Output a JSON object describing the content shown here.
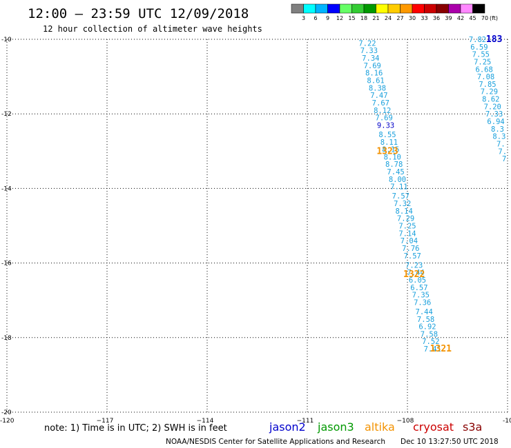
{
  "header": {
    "title": "12:00 – 23:59 UTC 12/09/2018",
    "subtitle": "12 hour collection of altimeter wave heights"
  },
  "colorbar": {
    "labels": [
      "3",
      "6",
      "9",
      "12",
      "15",
      "18",
      "21",
      "24",
      "27",
      "30",
      "33",
      "36",
      "39",
      "42",
      "45",
      "70"
    ],
    "unit": "(ft)",
    "colors": [
      "#808080",
      "#00ffff",
      "#00b4ff",
      "#0000ff",
      "#66ff66",
      "#33cc33",
      "#009900",
      "#ffff00",
      "#ffcc00",
      "#ff9900",
      "#ff0000",
      "#cc0000",
      "#880000",
      "#aa00aa",
      "#ff88ff",
      "#000000"
    ]
  },
  "chart_data": {
    "type": "scatter",
    "title": "12:00 – 23:59 UTC 12/09/2018",
    "subtitle": "12 hour collection of altimeter wave heights",
    "xlim": [
      -120,
      -105
    ],
    "ylim": [
      -20,
      -10
    ],
    "xticks": [
      -117,
      -114,
      -111,
      -108
    ],
    "xtick_labels": [
      "−117",
      "−114",
      "−111",
      "−108"
    ],
    "yticks": [
      -12,
      -14,
      -16,
      -18
    ],
    "ytick_labels": [
      "-12",
      "-14",
      "-16",
      "-18"
    ],
    "corner_labels": {
      "top_left": "-10",
      "bottom_left": "-20",
      "bottom_left_x": "-120",
      "bottom_right_x": "-10"
    },
    "grid": true,
    "tracks": [
      {
        "name": "altika",
        "pass": "1323",
        "pass_lon": -108.6,
        "pass_lat": -13.0,
        "color": "#f39200",
        "points": [
          {
            "lon": -109.2,
            "lat": -10.1,
            "v": "7.22",
            "c": "#1aa0dc"
          },
          {
            "lon": -109.15,
            "lat": -10.3,
            "v": "7.33",
            "c": "#1aa0dc"
          },
          {
            "lon": -109.1,
            "lat": -10.5,
            "v": "7.34",
            "c": "#1aa0dc"
          },
          {
            "lon": -109.05,
            "lat": -10.7,
            "v": "7.69",
            "c": "#1aa0dc"
          },
          {
            "lon": -109.0,
            "lat": -10.9,
            "v": "8.16",
            "c": "#1aa0dc"
          },
          {
            "lon": -108.95,
            "lat": -11.1,
            "v": "8.61",
            "c": "#1aa0dc"
          },
          {
            "lon": -108.9,
            "lat": -11.3,
            "v": "8.38",
            "c": "#1aa0dc"
          },
          {
            "lon": -108.85,
            "lat": -11.5,
            "v": "7.47",
            "c": "#1aa0dc"
          },
          {
            "lon": -108.8,
            "lat": -11.7,
            "v": "7.67",
            "c": "#1aa0dc"
          },
          {
            "lon": -108.75,
            "lat": -11.9,
            "v": "8.12",
            "c": "#1aa0dc"
          },
          {
            "lon": -108.7,
            "lat": -12.1,
            "v": "7.69",
            "c": "#1aa0dc"
          },
          {
            "lon": -108.65,
            "lat": -12.3,
            "v": "9.33",
            "c": "#0000c8"
          },
          {
            "lon": -108.6,
            "lat": -12.55,
            "v": "8.55",
            "c": "#1aa0dc"
          },
          {
            "lon": -108.55,
            "lat": -12.75,
            "v": "8.11",
            "c": "#1aa0dc"
          },
          {
            "lon": -108.5,
            "lat": -12.95,
            "v": "8.15",
            "c": "#1aa0dc"
          },
          {
            "lon": -108.45,
            "lat": -13.15,
            "v": "8.10",
            "c": "#1aa0dc"
          },
          {
            "lon": -108.4,
            "lat": -13.35,
            "v": "8.78",
            "c": "#1aa0dc"
          },
          {
            "lon": -108.35,
            "lat": -13.55,
            "v": "7.45",
            "c": "#1aa0dc"
          },
          {
            "lon": -108.3,
            "lat": -13.75,
            "v": "8.00",
            "c": "#1aa0dc"
          },
          {
            "lon": -108.25,
            "lat": -13.95,
            "v": "7.11",
            "c": "#1aa0dc"
          },
          {
            "lon": -108.2,
            "lat": -14.2,
            "v": "7.57",
            "c": "#1aa0dc"
          },
          {
            "lon": -108.15,
            "lat": -14.4,
            "v": "7.32",
            "c": "#1aa0dc"
          },
          {
            "lon": -108.1,
            "lat": -14.6,
            "v": "8.14",
            "c": "#1aa0dc"
          },
          {
            "lon": -108.05,
            "lat": -14.8,
            "v": "7.29",
            "c": "#1aa0dc"
          },
          {
            "lon": -108.0,
            "lat": -15.0,
            "v": "7.25",
            "c": "#1aa0dc"
          }
        ]
      },
      {
        "name": "altika",
        "pass": "1322",
        "pass_lon": -107.8,
        "pass_lat": -16.3,
        "color": "#f39200",
        "points": [
          {
            "lon": -108.0,
            "lat": -15.2,
            "v": "7.14",
            "c": "#1aa0dc"
          },
          {
            "lon": -107.95,
            "lat": -15.4,
            "v": "7.04",
            "c": "#1aa0dc"
          },
          {
            "lon": -107.9,
            "lat": -15.6,
            "v": "7.76",
            "c": "#1aa0dc"
          },
          {
            "lon": -107.85,
            "lat": -15.8,
            "v": "7.57",
            "c": "#1aa0dc"
          },
          {
            "lon": -107.8,
            "lat": -16.05,
            "v": "7.23",
            "c": "#1aa0dc"
          },
          {
            "lon": -107.75,
            "lat": -16.25,
            "v": "7.44",
            "c": "#1aa0dc"
          },
          {
            "lon": -107.7,
            "lat": -16.45,
            "v": "6.05",
            "c": "#1aa0dc"
          },
          {
            "lon": -107.65,
            "lat": -16.65,
            "v": "6.57",
            "c": "#1aa0dc"
          },
          {
            "lon": -107.6,
            "lat": -16.85,
            "v": "7.35",
            "c": "#1aa0dc"
          },
          {
            "lon": -107.55,
            "lat": -17.05,
            "v": "7.36",
            "c": "#1aa0dc"
          },
          {
            "lon": -107.5,
            "lat": -17.3,
            "v": "7.44",
            "c": "#1aa0dc"
          },
          {
            "lon": -107.45,
            "lat": -17.5,
            "v": "7.58",
            "c": "#1aa0dc"
          },
          {
            "lon": -107.4,
            "lat": -17.7,
            "v": "6.92",
            "c": "#1aa0dc"
          },
          {
            "lon": -107.35,
            "lat": -17.9,
            "v": "7.58",
            "c": "#1aa0dc"
          },
          {
            "lon": -107.3,
            "lat": -18.1,
            "v": "7.52",
            "c": "#1aa0dc"
          },
          {
            "lon": -107.25,
            "lat": -18.3,
            "v": "7.41",
            "c": "#1aa0dc"
          }
        ]
      },
      {
        "name": "altika",
        "pass": "1321",
        "pass_lon": -107.0,
        "pass_lat": -18.3,
        "color": "#f39200",
        "points": []
      },
      {
        "name": "jason2",
        "pass": "183",
        "pass_lon": -105.4,
        "pass_lat": -10.0,
        "color": "#0000cc",
        "points": [
          {
            "lon": -105.9,
            "lat": -10.0,
            "v": "7.82",
            "c": "#1aa0dc"
          },
          {
            "lon": -105.85,
            "lat": -10.2,
            "v": "6.59",
            "c": "#1aa0dc"
          },
          {
            "lon": -105.8,
            "lat": -10.4,
            "v": "7.55",
            "c": "#1aa0dc"
          },
          {
            "lon": -105.75,
            "lat": -10.6,
            "v": "7.25",
            "c": "#1aa0dc"
          },
          {
            "lon": -105.7,
            "lat": -10.8,
            "v": "6.68",
            "c": "#1aa0dc"
          },
          {
            "lon": -105.65,
            "lat": -11.0,
            "v": "7.08",
            "c": "#1aa0dc"
          },
          {
            "lon": -105.6,
            "lat": -11.2,
            "v": "7.85",
            "c": "#1aa0dc"
          },
          {
            "lon": -105.55,
            "lat": -11.4,
            "v": "7.29",
            "c": "#1aa0dc"
          },
          {
            "lon": -105.5,
            "lat": -11.6,
            "v": "8.62",
            "c": "#1aa0dc"
          },
          {
            "lon": -105.45,
            "lat": -11.8,
            "v": "7.20",
            "c": "#1aa0dc"
          },
          {
            "lon": -105.4,
            "lat": -12.0,
            "v": "7.33",
            "c": "#1aa0dc"
          },
          {
            "lon": -105.35,
            "lat": -12.2,
            "v": "6.94",
            "c": "#1aa0dc"
          },
          {
            "lon": -105.3,
            "lat": -12.4,
            "v": "8.3",
            "c": "#1aa0dc"
          },
          {
            "lon": -105.25,
            "lat": -12.6,
            "v": "8.3",
            "c": "#1aa0dc"
          },
          {
            "lon": -105.2,
            "lat": -12.8,
            "v": "7.",
            "c": "#1aa0dc"
          },
          {
            "lon": -105.15,
            "lat": -13.0,
            "v": "7.",
            "c": "#1aa0dc"
          },
          {
            "lon": -105.1,
            "lat": -13.2,
            "v": "7",
            "c": "#1aa0dc"
          }
        ]
      }
    ]
  },
  "footer": {
    "note": "note: 1) Time is in UTC; 2) SWH is in feet",
    "satellites": [
      {
        "name": "jason2",
        "color": "#0000cc"
      },
      {
        "name": "jason3",
        "color": "#009900"
      },
      {
        "name": "altika",
        "color": "#f39200"
      },
      {
        "name": "cryosat",
        "color": "#cc0000"
      },
      {
        "name": "s3a",
        "color": "#880000"
      }
    ],
    "credit": "NOAA/NESDIS Center for Satellite Applications and Research",
    "timestamp": "Dec 10 13:27:50 UTC 2018"
  }
}
